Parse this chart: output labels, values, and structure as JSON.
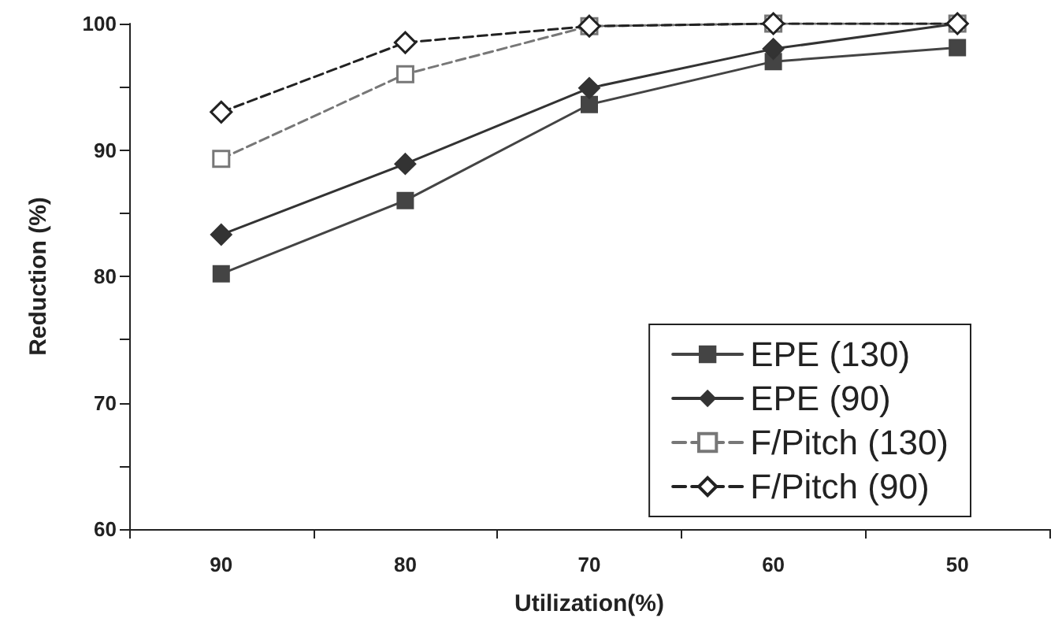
{
  "chart_data": {
    "type": "line",
    "xlabel": "Utilization(%)",
    "ylabel": "Reduction (%)",
    "categories": [
      "90",
      "80",
      "70",
      "60",
      "50"
    ],
    "ylim": [
      60,
      100
    ],
    "yticks": [
      60,
      {
        "value": 65,
        "label": null
      },
      70,
      {
        "value": 75,
        "label": null
      },
      80,
      {
        "value": 85,
        "label": null
      },
      90,
      {
        "value": 95,
        "label": null
      },
      100
    ],
    "grid": false,
    "legend": "bottom right",
    "series": [
      {
        "name": "EPE (130)",
        "color": "#444444",
        "marker": "square",
        "line_style": "solid",
        "values": [
          80.2,
          86,
          93.6,
          97,
          98.1
        ]
      },
      {
        "name": "EPE (90)",
        "color": "#333333",
        "marker": "diamond",
        "line_style": "solid",
        "values": [
          83.3,
          88.9,
          94.9,
          98,
          100
        ]
      },
      {
        "name": "F/Pitch (130)",
        "color": "#777777",
        "marker": "square",
        "line_style": "dashed",
        "values": [
          89.3,
          96,
          99.8,
          100,
          100
        ]
      },
      {
        "name": "F/Pitch (90)",
        "color": "#222222",
        "marker": "diamond",
        "line_style": "dashed",
        "values": [
          93,
          98.5,
          99.8,
          100,
          100
        ]
      }
    ]
  }
}
